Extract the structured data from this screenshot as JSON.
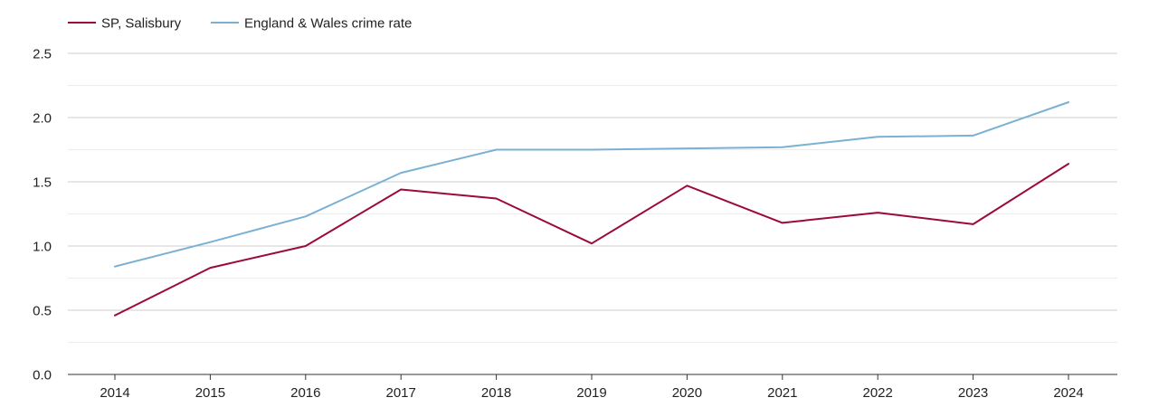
{
  "chart_data": {
    "type": "line",
    "title": "",
    "xlabel": "",
    "ylabel": "",
    "ylim": [
      0,
      2.5
    ],
    "grid": true,
    "legend_position": "top-left",
    "x": [
      2014,
      2015,
      2016,
      2017,
      2018,
      2019,
      2020,
      2021,
      2022,
      2023,
      2024
    ],
    "y_ticks": [
      "0.0",
      "0.5",
      "1.0",
      "1.5",
      "2.0",
      "2.5"
    ],
    "series": [
      {
        "name": "SP, Salisbury",
        "color": "#9c0b38",
        "values": [
          0.46,
          0.83,
          1.0,
          1.44,
          1.37,
          1.02,
          1.47,
          1.18,
          1.26,
          1.17,
          1.64
        ]
      },
      {
        "name": "England & Wales crime rate",
        "color": "#7ab1d3",
        "values": [
          0.84,
          1.03,
          1.23,
          1.57,
          1.75,
          1.75,
          1.76,
          1.77,
          1.85,
          1.86,
          2.12
        ]
      }
    ]
  }
}
